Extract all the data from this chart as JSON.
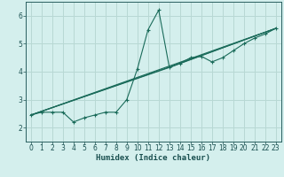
{
  "xlabel": "Humidex (Indice chaleur)",
  "background_color": "#d4efed",
  "grid_color": "#b8d8d4",
  "line_color": "#1a6b5a",
  "xlim": [
    -0.5,
    23.5
  ],
  "ylim": [
    1.5,
    6.5
  ],
  "xticks": [
    0,
    1,
    2,
    3,
    4,
    5,
    6,
    7,
    8,
    9,
    10,
    11,
    12,
    13,
    14,
    15,
    16,
    17,
    18,
    19,
    20,
    21,
    22,
    23
  ],
  "yticks": [
    2,
    3,
    4,
    5,
    6
  ],
  "series": [
    [
      0,
      2.45
    ],
    [
      1,
      2.55
    ],
    [
      2,
      2.55
    ],
    [
      3,
      2.55
    ],
    [
      4,
      2.2
    ],
    [
      5,
      2.35
    ],
    [
      6,
      2.45
    ],
    [
      7,
      2.55
    ],
    [
      8,
      2.55
    ],
    [
      9,
      3.0
    ],
    [
      10,
      4.1
    ],
    [
      11,
      5.5
    ],
    [
      12,
      6.2
    ],
    [
      13,
      4.15
    ],
    [
      14,
      4.3
    ],
    [
      15,
      4.5
    ],
    [
      16,
      4.55
    ],
    [
      17,
      4.35
    ],
    [
      18,
      4.5
    ],
    [
      19,
      4.75
    ],
    [
      20,
      5.0
    ],
    [
      21,
      5.2
    ],
    [
      22,
      5.35
    ],
    [
      23,
      5.55
    ]
  ],
  "line2": [
    [
      0,
      2.45
    ],
    [
      23,
      5.55
    ]
  ],
  "line3": [
    [
      0,
      2.45
    ],
    [
      13,
      4.15
    ],
    [
      23,
      5.55
    ]
  ],
  "line4": [
    [
      0,
      2.45
    ],
    [
      14,
      4.3
    ],
    [
      23,
      5.55
    ]
  ]
}
